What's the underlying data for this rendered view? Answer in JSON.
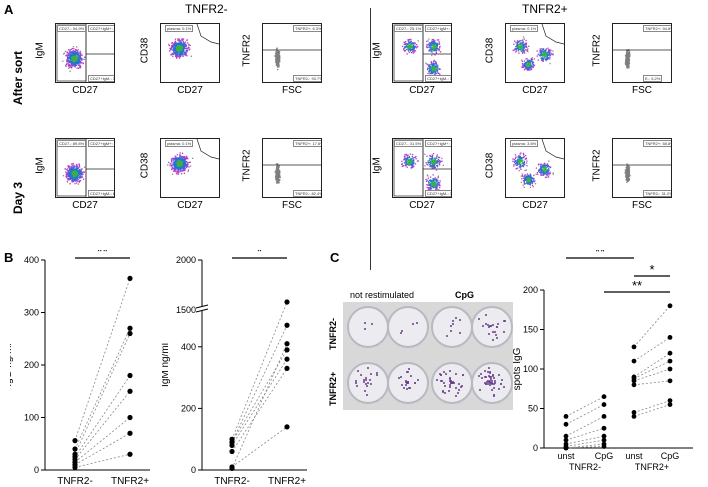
{
  "panel_a": {
    "letter": "A",
    "groups": [
      "TNFR2-",
      "TNFR2+"
    ],
    "rows": [
      "After sort",
      "Day 3"
    ],
    "plots": [
      {
        "ylabel": "IgM",
        "xlabel": "CD27",
        "gates": [
          "CD27-: 94.9%",
          "CD27+IgM+: 0.9%",
          "CD27+IgM-: 3.1%"
        ]
      },
      {
        "ylabel": "CD38",
        "xlabel": "CD27",
        "gates": [
          "plasma: 0.1%"
        ]
      },
      {
        "ylabel": "TNFR2",
        "xlabel": "FSC",
        "gates": [
          "TNFR2+: 6.3%",
          "TNFR2-: 93.7%"
        ]
      },
      {
        "ylabel": "IgM",
        "xlabel": "CD27",
        "gates": [
          "CD27-: 25.1%",
          "CD27+IgM+: 31.3%",
          "CD27+IgM-: 31.2%"
        ]
      },
      {
        "ylabel": "CD38",
        "xlabel": "CD27",
        "gates": [
          "plasma: 0.1%"
        ]
      },
      {
        "ylabel": "TNFR2",
        "xlabel": "FSC",
        "gates": [
          "TNFR2+: 94.8%",
          "E-: 5.2%"
        ]
      },
      {
        "ylabel": "IgM",
        "xlabel": "CD27",
        "gates": [
          "CD27-: 89.8%",
          "CD27+IgM+: 2.9%",
          "CD27+IgM-: 6.3%"
        ]
      },
      {
        "ylabel": "CD38",
        "xlabel": "CD27",
        "gates": [
          "plasma: 0.1%"
        ]
      },
      {
        "ylabel": "TNFR2",
        "xlabel": "FSC",
        "gates": [
          "TNFR2+: 17.6%",
          "TNFR2-: 82.4%"
        ]
      },
      {
        "ylabel": "IgM",
        "xlabel": "CD27",
        "gates": [
          "CD27-: 31.5%",
          "CD27+IgM+: 31.3%",
          "CD27+IgM-: 36.1%"
        ]
      },
      {
        "ylabel": "CD38",
        "xlabel": "CD27",
        "gates": [
          "plasma: 3.6%"
        ]
      },
      {
        "ylabel": "TNFR2",
        "xlabel": "FSC",
        "gates": [
          "TNFR2+: 68.8%",
          "TNFR2-: 31.2%"
        ]
      }
    ]
  },
  "panel_b": {
    "letter": "B"
  },
  "panel_c": {
    "letter": "C",
    "plate_headers": [
      "not restimulated",
      "CpG"
    ],
    "plate_rows": [
      "TNFR2-",
      "TNFR2+"
    ]
  },
  "colors": {
    "dot": "#000000",
    "line": "#888888",
    "sig_bar": "#000000",
    "facs_gray": "#7f7f7f"
  },
  "chart_data": [
    {
      "type": "scatter",
      "title": "",
      "xlabel": "",
      "ylabel": "IgG ng/ml",
      "categories": [
        "TNFR2-",
        "TNFR2+"
      ],
      "ylim": [
        0,
        400
      ],
      "yticks": [
        0,
        100,
        200,
        300,
        400
      ],
      "significance": "**",
      "pairs": [
        [
          56,
          365
        ],
        [
          40,
          270
        ],
        [
          30,
          260
        ],
        [
          25,
          180
        ],
        [
          20,
          150
        ],
        [
          15,
          100
        ],
        [
          10,
          70
        ],
        [
          5,
          30
        ]
      ]
    },
    {
      "type": "scatter",
      "title": "",
      "xlabel": "",
      "ylabel": "IgM ng/ml",
      "categories": [
        "TNFR2-",
        "TNFR2+"
      ],
      "ylim": [
        0,
        2000
      ],
      "yticks": [
        0,
        200,
        400,
        1500,
        2000
      ],
      "axis_break": [
        500,
        1500
      ],
      "significance": "*",
      "pairs": [
        [
          100,
          1580
        ],
        [
          90,
          470
        ],
        [
          5,
          410
        ],
        [
          90,
          390
        ],
        [
          80,
          360
        ],
        [
          60,
          330
        ],
        [
          10,
          140
        ]
      ]
    },
    {
      "type": "scatter",
      "title": "",
      "xlabel": "",
      "ylabel": "spots IgG",
      "categories": [
        "unst",
        "CpG",
        "unst",
        "CpG"
      ],
      "group_labels": [
        "TNFR2-",
        "TNFR2+"
      ],
      "ylim": [
        0,
        200
      ],
      "yticks": [
        0,
        50,
        100,
        150,
        200
      ],
      "significance": [
        {
          "from": 0,
          "to": 2,
          "label": "**"
        },
        {
          "from": 2,
          "to": 3,
          "label": "*"
        },
        {
          "from": 1,
          "to": 3,
          "label": "**"
        }
      ],
      "tnfr2_minus": [
        [
          40,
          65
        ],
        [
          30,
          55
        ],
        [
          15,
          40
        ],
        [
          10,
          25
        ],
        [
          5,
          15
        ],
        [
          2,
          10
        ],
        [
          0,
          5
        ],
        [
          0,
          2
        ]
      ],
      "tnfr2_plus": [
        [
          128,
          180
        ],
        [
          110,
          140
        ],
        [
          90,
          120
        ],
        [
          88,
          110
        ],
        [
          85,
          100
        ],
        [
          80,
          85
        ],
        [
          45,
          60
        ],
        [
          40,
          55
        ]
      ]
    }
  ]
}
